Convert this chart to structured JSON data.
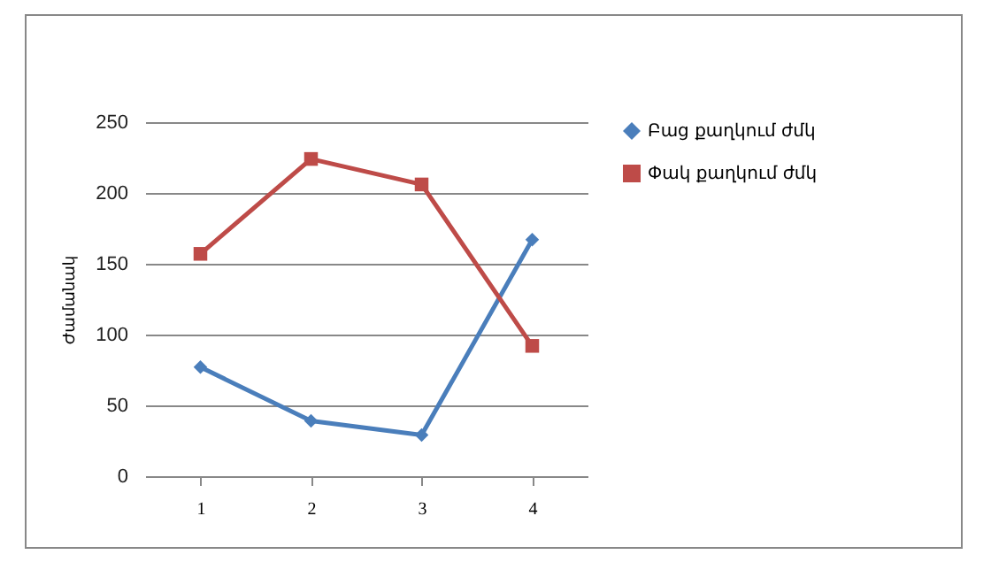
{
  "chart_data": {
    "type": "line",
    "ylabel": "Ժամանակ",
    "categories": [
      "1",
      "2",
      "3",
      "4"
    ],
    "series": [
      {
        "name": "Բաց քաղկում ժմկ",
        "color": "#4a7ebb",
        "marker": "diamond",
        "values": [
          77,
          39,
          29,
          167
        ]
      },
      {
        "name": "Փակ քաղկում ժմկ",
        "color": "#be4b48",
        "marker": "square",
        "values": [
          157,
          224,
          206,
          92
        ]
      }
    ],
    "ylim": [
      0,
      250
    ],
    "yticks": [
      0,
      50,
      100,
      150,
      200,
      250
    ],
    "grid": "y",
    "legend": "right"
  }
}
